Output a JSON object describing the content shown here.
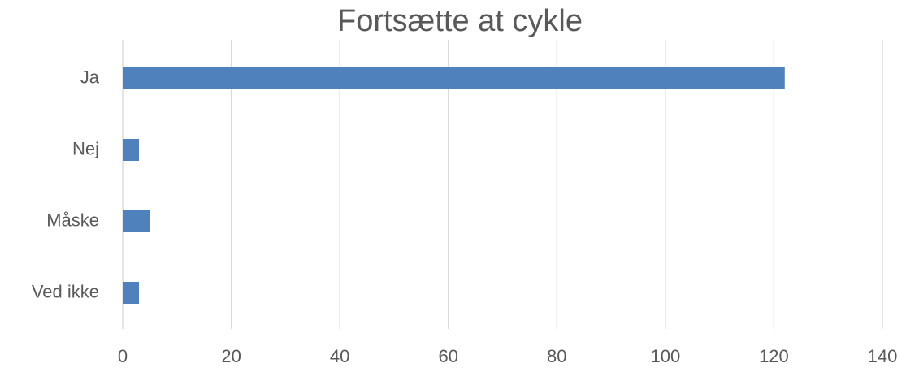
{
  "chart_data": {
    "type": "hbar",
    "title": "Fortsætte at cykle",
    "categories": [
      "Ja",
      "Nej",
      "Måske",
      "Ved ikke"
    ],
    "values": [
      122,
      3,
      5,
      3
    ],
    "color": "#4f81bd",
    "xlim": [
      0,
      140
    ],
    "xticks": [
      0,
      20,
      40,
      60,
      80,
      100,
      120,
      140
    ],
    "grid": true
  }
}
